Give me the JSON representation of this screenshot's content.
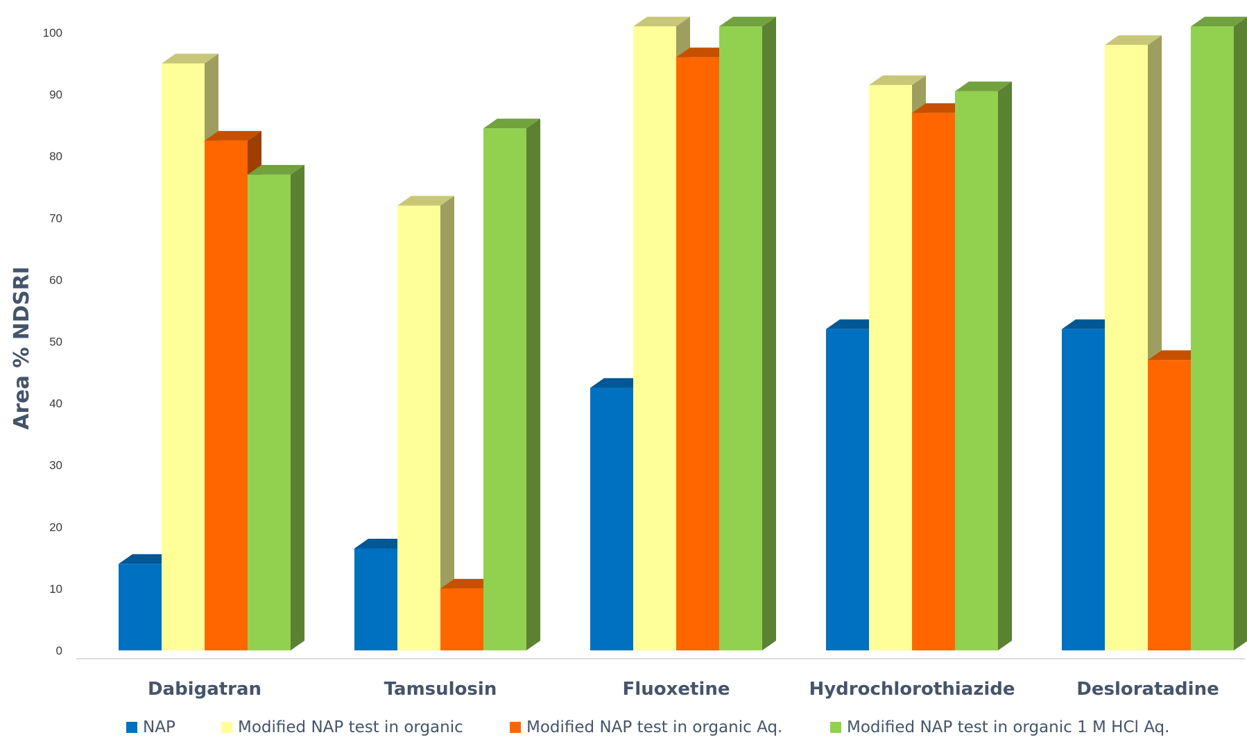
{
  "chart_data": {
    "type": "bar",
    "style": "3d-clustered-column",
    "ylabel": "Area % NDSRI",
    "xlabel": "",
    "title": "",
    "ylim": [
      0,
      100
    ],
    "yticks": [
      0,
      10,
      20,
      30,
      40,
      50,
      60,
      70,
      80,
      90,
      100
    ],
    "grid": false,
    "legend_position": "bottom",
    "categories": [
      "Dabigatran",
      "Tamsulosin",
      "Fluoxetine",
      "Hydrochlorothiazide",
      "Desloratadine"
    ],
    "series": [
      {
        "name": "NAP",
        "color": "#0070c0",
        "values": [
          14,
          16.5,
          42.5,
          52,
          52
        ]
      },
      {
        "name": "Modified NAP test in organic",
        "color": "#ffff99",
        "values": [
          95,
          72,
          101,
          91.5,
          98
        ]
      },
      {
        "name": "Modified NAP test in organic Aq.",
        "color": "#ff6600",
        "values": [
          82.5,
          10,
          96,
          87,
          47
        ]
      },
      {
        "name": "Modified NAP test in organic 1 M HCl Aq.",
        "color": "#92d050",
        "values": [
          77,
          84.5,
          101,
          90.5,
          101
        ]
      }
    ]
  }
}
